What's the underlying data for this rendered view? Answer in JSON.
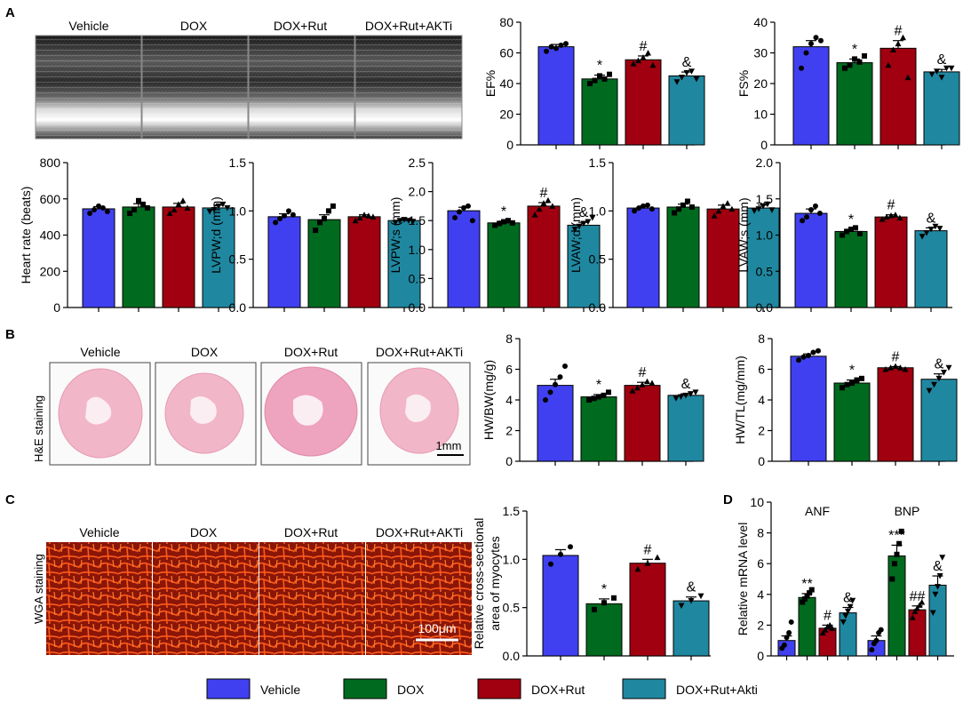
{
  "panels": [
    "A",
    "B",
    "C",
    "D"
  ],
  "groups": [
    "Vehicle",
    "DOX",
    "DOX+Rut",
    "DOX+Rut+AKTi"
  ],
  "legend": [
    "Vehicle",
    "DOX",
    "DOX+Rut",
    "DOX+Rut+Akti"
  ],
  "colors": [
    "#4040F0",
    "#006A1E",
    "#A0000F",
    "#1F88A0"
  ],
  "images": {
    "echo": {
      "icon": "m-mode-echo-image",
      "labels": [
        "Vehicle",
        "DOX",
        "DOX+Rut",
        "DOX+Rut+AKTi"
      ]
    },
    "he": {
      "icon": "he-heart-section-image",
      "side_label": "H&E staining",
      "labels": [
        "Vehicle",
        "DOX",
        "DOX+Rut",
        "DOX+Rut+AKTi"
      ],
      "scale": "1mm"
    },
    "wga": {
      "icon": "wga-myocyte-image",
      "side_label": "WGA staining",
      "labels": [
        "Vehicle",
        "DOX",
        "DOX+Rut",
        "DOX+Rut+AKTi"
      ],
      "scale": "100μm"
    }
  },
  "chart_data": [
    {
      "id": "ef",
      "type": "bar",
      "ylabel": "EF%",
      "ylim": [
        0,
        80
      ],
      "ticks": [
        0,
        20,
        40,
        60,
        80
      ],
      "values": [
        64,
        43,
        55.5,
        45
      ],
      "errors": [
        1.5,
        2.5,
        2.5,
        2.5
      ],
      "annotations": [
        "",
        "*",
        "#",
        "&"
      ],
      "points": [
        [
          61,
          64,
          63,
          65,
          66
        ],
        [
          40,
          42,
          45,
          43,
          46
        ],
        [
          53,
          55,
          57,
          60,
          52
        ],
        [
          41,
          44,
          47,
          48,
          43
        ]
      ]
    },
    {
      "id": "fs",
      "type": "bar",
      "ylabel": "FS%",
      "ylim": [
        0,
        40
      ],
      "ticks": [
        0,
        10,
        20,
        30,
        40
      ],
      "values": [
        32,
        26.8,
        31.5,
        23.8
      ],
      "errors": [
        2,
        1.2,
        2.5,
        0.8
      ],
      "annotations": [
        "",
        "*",
        "#",
        "&"
      ],
      "points": [
        [
          25,
          30,
          33,
          35,
          34
        ],
        [
          25,
          26,
          28,
          27,
          29
        ],
        [
          26,
          31,
          33,
          35,
          22
        ],
        [
          23,
          24,
          22,
          25,
          25
        ]
      ]
    },
    {
      "id": "hr",
      "type": "bar",
      "ylabel": "Heart rate (beats)",
      "ylim": [
        0,
        800
      ],
      "ticks": [
        0,
        200,
        400,
        600,
        800
      ],
      "values": [
        545,
        555,
        555,
        550
      ],
      "errors": [
        12,
        18,
        20,
        15
      ],
      "annotations": [
        "",
        "",
        "",
        ""
      ],
      "points": [
        [
          520,
          540,
          560,
          550,
          530
        ],
        [
          520,
          540,
          590,
          570,
          550
        ],
        [
          520,
          540,
          570,
          590,
          550
        ],
        [
          530,
          540,
          560,
          570,
          550
        ]
      ]
    },
    {
      "id": "lvpwd",
      "type": "bar",
      "ylabel": "LVPW;d (mm)",
      "ylim": [
        0,
        1.5
      ],
      "ticks": [
        0,
        0.5,
        1.0,
        1.5
      ],
      "values": [
        0.94,
        0.91,
        0.94,
        0.9
      ],
      "errors": [
        0.03,
        0.05,
        0.02,
        0.01
      ],
      "annotations": [
        "",
        "",
        "",
        ""
      ],
      "points": [
        [
          0.88,
          0.92,
          0.95,
          1.0,
          0.96
        ],
        [
          0.8,
          0.88,
          0.92,
          1.0,
          1.05
        ],
        [
          0.9,
          0.93,
          0.96,
          0.95,
          0.94
        ],
        [
          0.88,
          0.9,
          0.91,
          0.9,
          0.89
        ]
      ]
    },
    {
      "id": "lvpws",
      "type": "bar",
      "ylabel": "LVPW;s (mm)",
      "ylim": [
        0,
        2.5
      ],
      "ticks": [
        0,
        0.5,
        1.0,
        1.5,
        2.0,
        2.5
      ],
      "values": [
        1.67,
        1.46,
        1.75,
        1.42
      ],
      "errors": [
        0.06,
        0.03,
        0.06,
        0.05
      ],
      "annotations": [
        "",
        "*",
        "#",
        "&"
      ],
      "points": [
        [
          1.55,
          1.65,
          1.72,
          1.75,
          1.5
        ],
        [
          1.42,
          1.45,
          1.48,
          1.5,
          1.46
        ],
        [
          1.6,
          1.7,
          1.8,
          1.85,
          1.75
        ],
        [
          1.35,
          1.4,
          1.45,
          1.48,
          1.55
        ]
      ]
    },
    {
      "id": "lvawd",
      "type": "bar",
      "ylabel": "LVAW;d (mm)",
      "ylim": [
        0,
        1.5
      ],
      "ticks": [
        0,
        0.5,
        1.0,
        1.5
      ],
      "values": [
        1.03,
        1.04,
        1.02,
        1.03
      ],
      "errors": [
        0.02,
        0.03,
        0.04,
        0.03
      ],
      "annotations": [
        "",
        "",
        "",
        ""
      ],
      "points": [
        [
          1.0,
          1.03,
          1.05,
          1.06,
          1.02
        ],
        [
          0.98,
          1.02,
          1.06,
          1.1,
          1.04
        ],
        [
          0.95,
          1.0,
          1.05,
          1.08,
          1.02
        ],
        [
          1.0,
          1.02,
          1.05,
          1.07,
          1.01
        ]
      ]
    },
    {
      "id": "lvaws",
      "type": "bar",
      "ylabel": "LVAW;s (mm)",
      "ylim": [
        0,
        2.0
      ],
      "ticks": [
        0,
        0.5,
        1.0,
        1.5,
        2.0
      ],
      "values": [
        1.3,
        1.05,
        1.25,
        1.06
      ],
      "errors": [
        0.06,
        0.03,
        0.03,
        0.04
      ],
      "annotations": [
        "",
        "*",
        "#",
        "&"
      ],
      "points": [
        [
          1.2,
          1.25,
          1.35,
          1.4,
          1.3
        ],
        [
          1.0,
          1.05,
          1.08,
          1.1,
          1.02
        ],
        [
          1.22,
          1.25,
          1.27,
          1.28,
          1.24
        ],
        [
          0.98,
          1.03,
          1.08,
          1.12,
          1.09
        ]
      ]
    },
    {
      "id": "hwbw",
      "type": "bar",
      "ylabel": "HW/BW(mg/g)",
      "ylim": [
        0,
        8
      ],
      "ticks": [
        0,
        2,
        4,
        6,
        8
      ],
      "values": [
        4.95,
        4.2,
        4.95,
        4.3
      ],
      "errors": [
        0.4,
        0.15,
        0.2,
        0.1
      ],
      "annotations": [
        "",
        "*",
        "#",
        "&"
      ],
      "points": [
        [
          4.0,
          4.5,
          5.0,
          5.5,
          6.2
        ],
        [
          4.0,
          4.1,
          4.2,
          4.3,
          4.5
        ],
        [
          4.6,
          4.8,
          5.0,
          5.2,
          5.1
        ],
        [
          4.1,
          4.2,
          4.3,
          4.4,
          4.5
        ]
      ]
    },
    {
      "id": "hwtl",
      "type": "bar",
      "ylabel": "HW/TL(mg/mm)",
      "ylim": [
        0,
        8
      ],
      "ticks": [
        0,
        2,
        4,
        6,
        8
      ],
      "values": [
        6.85,
        5.1,
        6.1,
        5.35
      ],
      "errors": [
        0.15,
        0.2,
        0.08,
        0.35
      ],
      "annotations": [
        "",
        "*",
        "#",
        "&"
      ],
      "points": [
        [
          6.6,
          6.8,
          6.9,
          7.1,
          7.2
        ],
        [
          4.8,
          5.0,
          5.1,
          5.3,
          5.4
        ],
        [
          6.0,
          6.1,
          6.2,
          6.1,
          6.0
        ],
        [
          4.6,
          5.0,
          5.4,
          5.8,
          6.1
        ]
      ]
    },
    {
      "id": "csa",
      "type": "bar",
      "ylabel": "Relative cross-sectional area of myocytes",
      "ylim": [
        0,
        1.5
      ],
      "ticks": [
        0,
        0.5,
        1.0,
        1.5
      ],
      "values": [
        1.04,
        0.54,
        0.96,
        0.57
      ],
      "errors": [
        0.06,
        0.05,
        0.04,
        0.04
      ],
      "annotations": [
        "",
        "*",
        "#",
        "&"
      ],
      "points": [
        [
          0.95,
          1.05,
          1.13
        ],
        [
          0.48,
          0.55,
          0.6
        ],
        [
          0.9,
          0.96,
          1.02
        ],
        [
          0.52,
          0.57,
          0.62
        ]
      ]
    },
    {
      "id": "mrna",
      "type": "bar",
      "ylabel": "Relative mRNA level",
      "ylim": [
        0,
        10
      ],
      "ticks": [
        0,
        2,
        4,
        6,
        8,
        10
      ],
      "categories": [
        "ANF",
        "BNP"
      ],
      "values": [
        [
          1.0,
          3.8,
          1.8,
          2.8
        ],
        [
          1.0,
          6.5,
          3.0,
          4.6
        ]
      ],
      "errors": [
        [
          0.3,
          0.25,
          0.2,
          0.35
        ],
        [
          0.3,
          0.7,
          0.25,
          0.6
        ]
      ],
      "annotations": [
        [
          "",
          "**",
          "#",
          "&"
        ],
        [
          "",
          "***",
          "##",
          "&"
        ]
      ],
      "points": [
        [
          [
            0.5,
            0.7,
            1.2,
            1.5,
            2.2
          ],
          [
            3.5,
            3.7,
            3.9,
            4.1,
            4.3
          ],
          [
            1.5,
            1.7,
            1.9,
            2.0,
            1.8
          ],
          [
            2.2,
            2.6,
            2.9,
            3.2,
            3.6
          ]
        ],
        [
          [
            0.4,
            0.8,
            1.0,
            1.5,
            1.7
          ],
          [
            5.0,
            6.0,
            6.6,
            7.3,
            8.1
          ],
          [
            2.5,
            2.9,
            3.1,
            3.3,
            3.5
          ],
          [
            2.8,
            4.0,
            4.5,
            5.2,
            6.4
          ]
        ]
      ]
    }
  ]
}
